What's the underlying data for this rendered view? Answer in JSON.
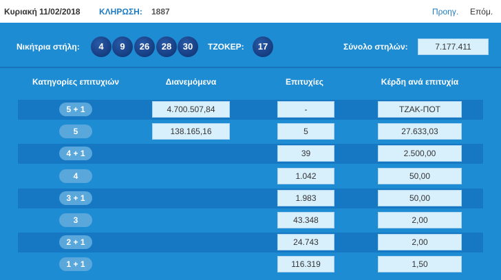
{
  "header": {
    "date": "Κυριακή 11/02/2018",
    "draw_label": "ΚΛΗΡΩΣΗ:",
    "draw_number": "1887",
    "prev": "Προηγ.",
    "next": "Επόμ."
  },
  "summary": {
    "winning_label": "Νικήτρια στήλη:",
    "numbers": [
      "4",
      "9",
      "26",
      "28",
      "30"
    ],
    "joker_label": "ΤΖΟΚΕΡ:",
    "joker": "17",
    "total_label": "Σύνολο στηλών:",
    "total": "7.177.411"
  },
  "table": {
    "headers": [
      "Κατηγορίες επιτυχιών",
      "Διανεμόμενα",
      "Επιτυχίες",
      "Κέρδη ανά επιτυχία"
    ],
    "rows": [
      [
        "5 + 1",
        "4.700.507,84",
        "-",
        "ΤΖΑΚ-ΠΟΤ"
      ],
      [
        "5",
        "138.165,16",
        "5",
        "27.633,03"
      ],
      [
        "4 + 1",
        null,
        "39",
        "2.500,00"
      ],
      [
        "4",
        null,
        "1.042",
        "50,00"
      ],
      [
        "3 + 1",
        null,
        "1.983",
        "50,00"
      ],
      [
        "3",
        null,
        "43.348",
        "2,00"
      ],
      [
        "2 + 1",
        null,
        "24.743",
        "2,00"
      ],
      [
        "1 + 1",
        null,
        "116.319",
        "1,50"
      ]
    ]
  }
}
